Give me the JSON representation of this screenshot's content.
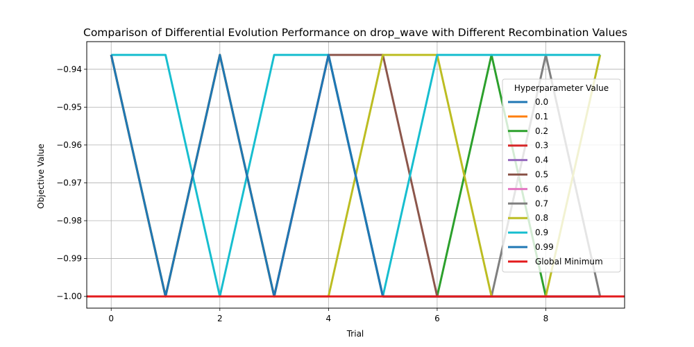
{
  "chart_data": {
    "type": "line",
    "title": "Comparison of Differential Evolution Performance on drop_wave with Different Recombination Values",
    "xlabel": "Trial",
    "ylabel": "Objective Value",
    "xlim": [
      -0.45,
      9.45
    ],
    "ylim": [
      -1.0031,
      -0.9327
    ],
    "xticks": [
      0,
      2,
      4,
      6,
      8
    ],
    "xtick_labels": [
      "0",
      "2",
      "4",
      "6",
      "8"
    ],
    "yticks": [
      -1.0,
      -0.99,
      -0.98,
      -0.97,
      -0.96,
      -0.95,
      -0.94
    ],
    "ytick_labels": [
      "−1.00",
      "−0.99",
      "−0.98",
      "−0.97",
      "−0.96",
      "−0.95",
      "−0.94"
    ],
    "grid": true,
    "legend": {
      "title": "Hyperparameter Value",
      "placement": "right"
    },
    "x": [
      0,
      1,
      2,
      3,
      4,
      5,
      6,
      7,
      8,
      9
    ],
    "series": [
      {
        "name": "0.0",
        "color": "#1f77b4",
        "values": [
          -0.9362,
          -1.0,
          -0.9362,
          -1.0,
          -0.9362,
          -1.0,
          -1.0,
          -1.0,
          -1.0,
          -1.0
        ]
      },
      {
        "name": "0.1",
        "color": "#ff7f0e",
        "values": [
          -0.9362,
          -1.0,
          -0.9362,
          -1.0,
          -0.9362,
          -1.0,
          -1.0,
          -1.0,
          -1.0,
          -1.0
        ]
      },
      {
        "name": "0.2",
        "color": "#2ca02c",
        "values": [
          -0.9362,
          -1.0,
          -0.9362,
          -1.0,
          -0.9362,
          -1.0,
          -1.0,
          -0.9362,
          -1.0,
          -1.0
        ]
      },
      {
        "name": "0.3",
        "color": "#d62728",
        "values": [
          -0.9362,
          -1.0,
          -0.9362,
          -1.0,
          -0.9362,
          -1.0,
          -1.0,
          -1.0,
          -1.0,
          -1.0
        ]
      },
      {
        "name": "0.4",
        "color": "#9467bd",
        "values": [
          -0.9362,
          -1.0,
          -0.9362,
          -1.0,
          -0.9362,
          -1.0,
          -1.0,
          -1.0,
          -1.0,
          -1.0
        ]
      },
      {
        "name": "0.5",
        "color": "#8c564b",
        "values": [
          -0.9362,
          -1.0,
          -0.9362,
          -1.0,
          -0.9362,
          -0.9362,
          -1.0,
          -1.0,
          -1.0,
          -1.0
        ]
      },
      {
        "name": "0.6",
        "color": "#e377c2",
        "values": [
          -0.9362,
          -1.0,
          -0.9362,
          -1.0,
          -0.9362,
          -1.0,
          -1.0,
          -1.0,
          -1.0,
          -1.0
        ]
      },
      {
        "name": "0.7",
        "color": "#7f7f7f",
        "values": [
          -0.9362,
          -1.0,
          -0.9362,
          -1.0,
          -0.9362,
          -1.0,
          -1.0,
          -1.0,
          -0.9362,
          -1.0
        ]
      },
      {
        "name": "0.8",
        "color": "#bcbd22",
        "values": [
          -0.9362,
          -1.0,
          -0.9362,
          -1.0,
          -1.0,
          -0.9362,
          -0.9362,
          -1.0,
          -1.0,
          -0.9362
        ]
      },
      {
        "name": "0.9",
        "color": "#17becf",
        "values": [
          -0.9362,
          -0.9362,
          -1.0,
          -0.9362,
          -0.9362,
          -1.0,
          -0.9362,
          -0.9362,
          -0.9362,
          -0.9362
        ]
      },
      {
        "name": "0.99",
        "color": "#1f77b4",
        "values": [
          -0.9362,
          -1.0,
          -0.9362,
          -1.0,
          -0.9362,
          -1.0,
          -1.0,
          -1.0,
          -1.0,
          -1.0
        ]
      }
    ],
    "global_minimum": {
      "name": "Global Minimum",
      "value": -1.0,
      "color": "#e31a1c"
    }
  }
}
